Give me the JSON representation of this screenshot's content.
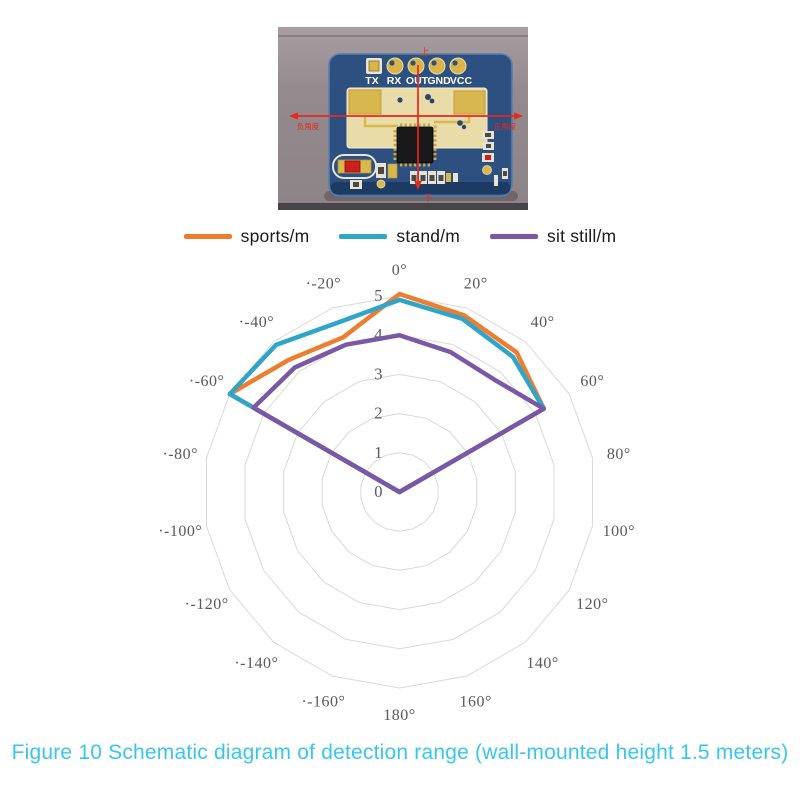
{
  "pcb_photo": {
    "background_color": "#958b8e",
    "board_color": "#2d5080",
    "pin_labels": [
      "TX",
      "RX",
      "OUT",
      "GND",
      "VCC"
    ],
    "annotations": {
      "up": "上",
      "down": "下",
      "left_axis": "负角度",
      "right_axis": "正角度"
    },
    "arrow_color": "#e8281e"
  },
  "legend": {
    "items": [
      {
        "label": "sports/m",
        "color": "#ED7D31"
      },
      {
        "label": "stand/m",
        "color": "#2FA5C7"
      },
      {
        "label": "sit still/m",
        "color": "#7A58A5"
      }
    ]
  },
  "chart_data": {
    "type": "radar",
    "title": "",
    "grid": "rings",
    "grid_color": "#d9d9d9",
    "rlim": [
      0,
      5
    ],
    "radial_ticks": [
      0,
      1,
      2,
      3,
      4,
      5
    ],
    "angle_labels": [
      "0°",
      "20°",
      "40°",
      "60°",
      "80°",
      "100°",
      "120°",
      "140°",
      "160°",
      "180°",
      "·-160°",
      "·-140°",
      "·-120°",
      "·-100°",
      "·-80°",
      "·-60°",
      "·-40°",
      "·-20°"
    ],
    "angle_label_step_deg": 20,
    "angles_deg": [
      -80,
      -60,
      -40,
      -20,
      0,
      20,
      40,
      60,
      80
    ],
    "series": [
      {
        "name": "sports/m",
        "color": "#ED7D31",
        "values": [
          0,
          5.0,
          4.4,
          4.2,
          5.05,
          4.8,
          4.65,
          4.25,
          0
        ]
      },
      {
        "name": "stand/m",
        "color": "#2FA5C7",
        "values": [
          0,
          5.0,
          4.9,
          4.6,
          4.9,
          4.7,
          4.5,
          4.25,
          0
        ]
      },
      {
        "name": "sit still/m",
        "color": "#7A58A5",
        "values": [
          0,
          4.3,
          4.15,
          4.0,
          4.0,
          3.8,
          3.75,
          4.25,
          0
        ]
      }
    ]
  },
  "caption": {
    "text": "Figure 10 Schematic diagram of detection range (wall-mounted height 1.5 meters)",
    "color": "#38C6F0"
  }
}
